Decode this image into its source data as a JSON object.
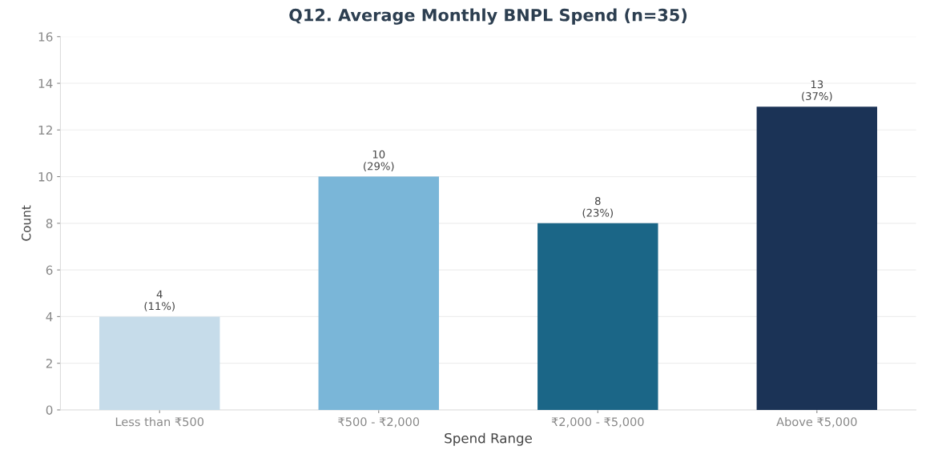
{
  "chart_data": {
    "type": "bar",
    "title": "Q12. Average Monthly BNPL Spend (n=35)",
    "xlabel": "Spend Range",
    "ylabel": "Count",
    "categories": [
      "Less than ₹500",
      "₹500 - ₹2,000",
      "₹2,000 - ₹5,000",
      "Above ₹5,000"
    ],
    "values": [
      4,
      10,
      8,
      13
    ],
    "colors": [
      "#c6dcea",
      "#7ab6d8",
      "#1b6687",
      "#1b3356"
    ],
    "value_labels": [
      "4\n(11%)",
      "10\n(29%)",
      "8\n(23%)",
      "13\n(37%)"
    ],
    "ylim": [
      0,
      16
    ],
    "yticks": [
      0,
      2,
      4,
      6,
      8,
      10,
      12,
      14,
      16
    ],
    "grid": "y",
    "legend": false
  }
}
